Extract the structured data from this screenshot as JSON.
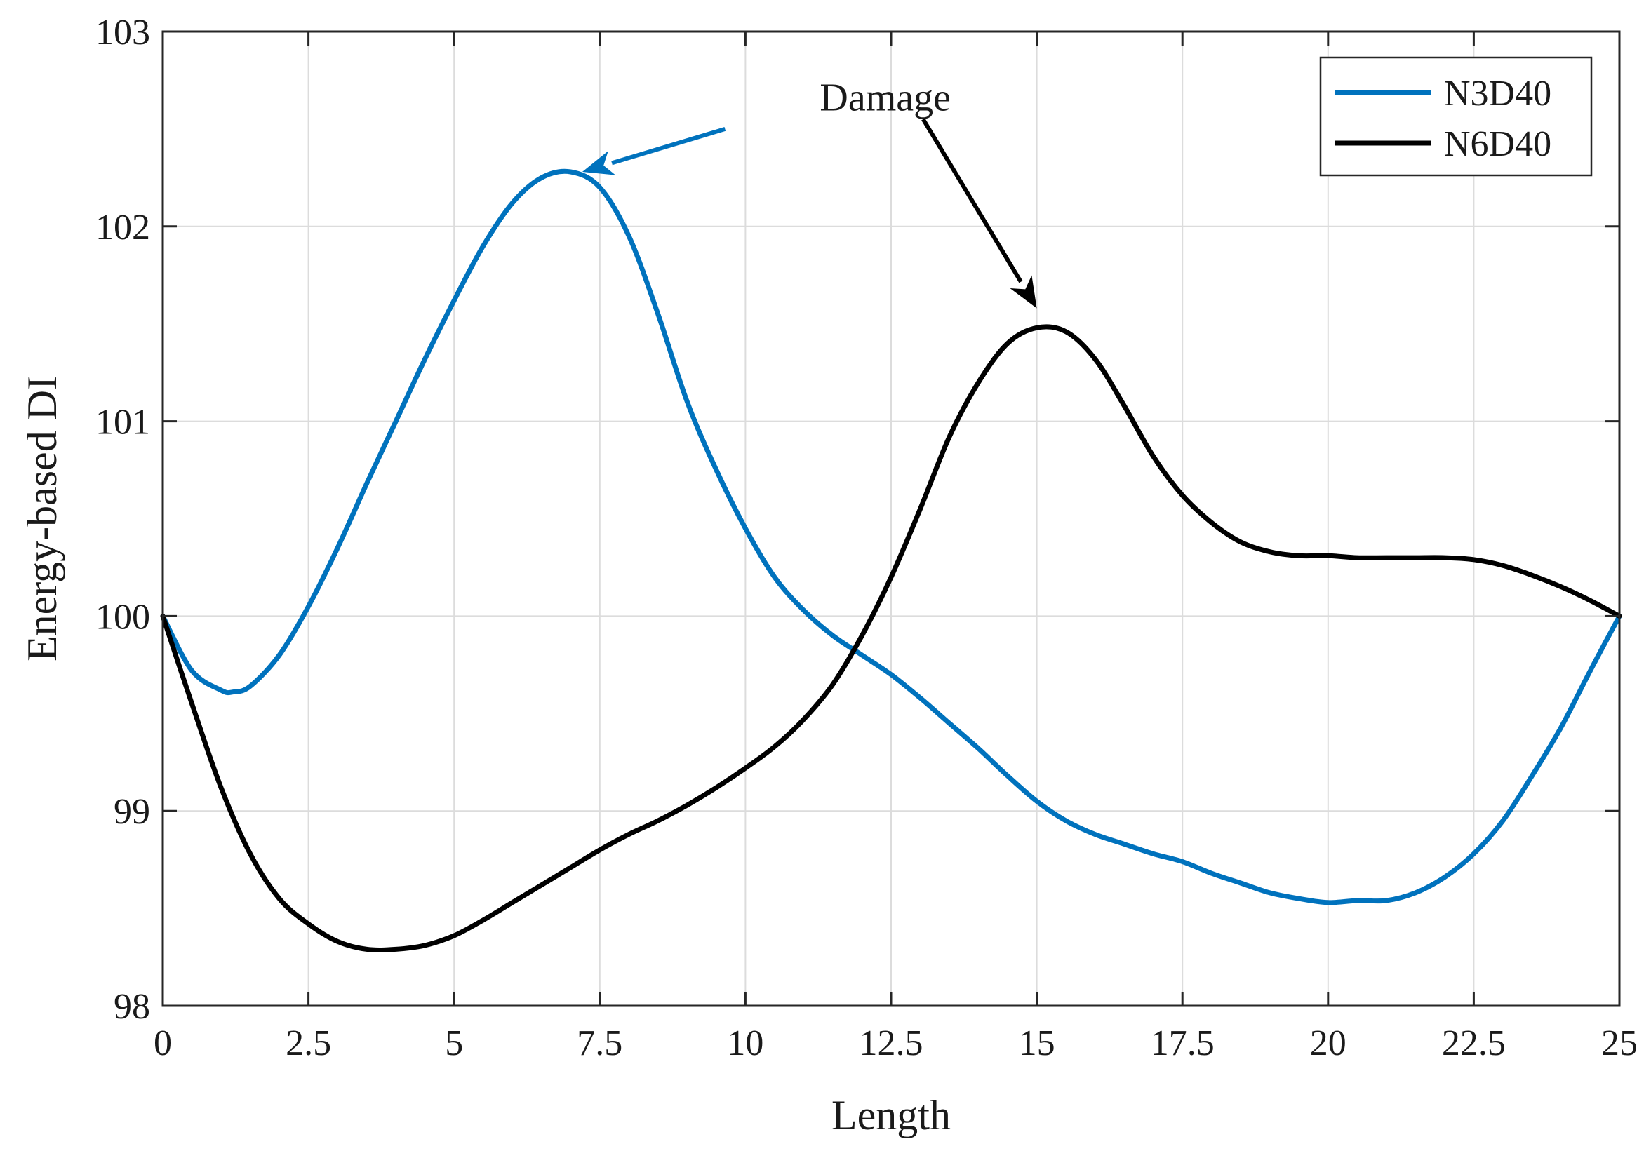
{
  "chart_data": {
    "type": "line",
    "title": "",
    "xlabel": "Length",
    "ylabel": "Energy-based DI",
    "xlim": [
      0,
      25
    ],
    "ylim": [
      98,
      103
    ],
    "xticks": [
      0,
      2.5,
      5,
      7.5,
      10,
      12.5,
      15,
      17.5,
      20,
      22.5,
      25
    ],
    "xtick_labels": [
      "0",
      "2.5",
      "5",
      "7.5",
      "10",
      "12.5",
      "15",
      "17.5",
      "20",
      "22.5",
      "25"
    ],
    "yticks": [
      98,
      99,
      100,
      101,
      102,
      103
    ],
    "ytick_labels": [
      "98",
      "99",
      "100",
      "101",
      "102",
      "103"
    ],
    "grid": true,
    "legend_position": "top-right",
    "series": [
      {
        "name": "N3D40",
        "color": "#0072BD",
        "x": [
          0,
          0.5,
          1,
          1.2,
          1.5,
          2,
          2.5,
          3,
          3.5,
          4,
          4.5,
          5,
          5.5,
          6,
          6.5,
          7,
          7.5,
          8,
          8.5,
          9,
          9.5,
          10,
          10.5,
          11,
          11.5,
          12,
          12.5,
          13,
          13.5,
          14,
          14.5,
          15,
          15.5,
          16,
          16.5,
          17,
          17.5,
          18,
          18.5,
          19,
          19.5,
          20,
          20.5,
          21,
          21.5,
          22,
          22.5,
          23,
          23.5,
          24,
          24.5,
          25
        ],
        "y": [
          100.0,
          99.72,
          99.62,
          99.61,
          99.64,
          99.8,
          100.05,
          100.35,
          100.68,
          101.0,
          101.32,
          101.62,
          101.9,
          102.12,
          102.25,
          102.28,
          102.2,
          101.95,
          101.55,
          101.1,
          100.75,
          100.45,
          100.2,
          100.03,
          99.9,
          99.8,
          99.7,
          99.58,
          99.45,
          99.32,
          99.18,
          99.05,
          98.95,
          98.88,
          98.83,
          98.78,
          98.74,
          98.68,
          98.63,
          98.58,
          98.55,
          98.53,
          98.54,
          98.54,
          98.58,
          98.66,
          98.78,
          98.95,
          99.18,
          99.43,
          99.72,
          100.0
        ]
      },
      {
        "name": "N6D40",
        "color": "#000000",
        "x": [
          0,
          0.5,
          1,
          1.5,
          2,
          2.5,
          3,
          3.5,
          4,
          4.5,
          5,
          5.5,
          6,
          6.5,
          7,
          7.5,
          8,
          8.5,
          9,
          9.5,
          10,
          10.5,
          11,
          11.5,
          12,
          12.5,
          13,
          13.5,
          14,
          14.5,
          15,
          15.5,
          16,
          16.5,
          17,
          17.5,
          18,
          18.5,
          19,
          19.5,
          20,
          20.5,
          21,
          21.5,
          22,
          22.5,
          23,
          23.5,
          24,
          24.5,
          25
        ],
        "y": [
          100.0,
          99.55,
          99.12,
          98.78,
          98.55,
          98.42,
          98.33,
          98.29,
          98.29,
          98.31,
          98.36,
          98.44,
          98.53,
          98.62,
          98.71,
          98.8,
          98.88,
          98.95,
          99.03,
          99.12,
          99.22,
          99.33,
          99.47,
          99.65,
          99.9,
          100.2,
          100.55,
          100.92,
          101.2,
          101.4,
          101.48,
          101.46,
          101.32,
          101.08,
          100.82,
          100.62,
          100.48,
          100.38,
          100.33,
          100.31,
          100.31,
          100.3,
          100.3,
          100.3,
          100.3,
          100.29,
          100.26,
          100.21,
          100.15,
          100.08,
          100.0
        ]
      }
    ],
    "annotations": [
      {
        "text": "Damage",
        "at": [
          12.4,
          102.66
        ]
      }
    ],
    "arrows": [
      {
        "color": "#0072BD",
        "from": [
          9.65,
          102.5
        ],
        "to": [
          7.2,
          102.28
        ]
      },
      {
        "color": "#000000",
        "from": [
          13.05,
          102.55
        ],
        "to": [
          15.0,
          101.58
        ]
      }
    ]
  }
}
